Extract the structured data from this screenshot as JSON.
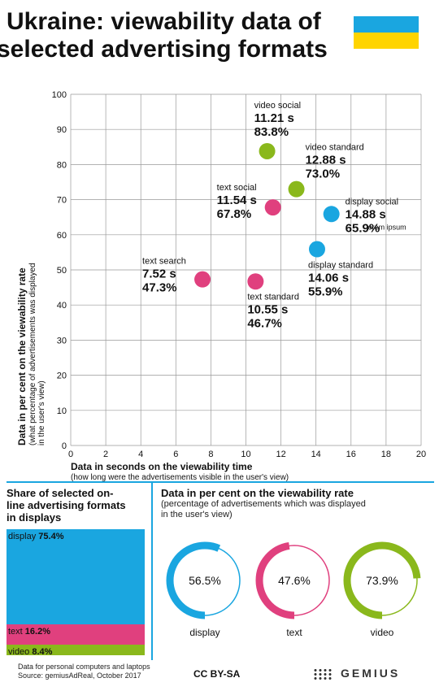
{
  "header": {
    "title_line1": "Ukraine: viewability data of",
    "title_line2": "selected advertising formats",
    "flag_colors": [
      "#1aa6e0",
      "#ffd400"
    ]
  },
  "chart_data": {
    "type": "scatter",
    "xlabel": "Data in seconds on the viewability time",
    "xlabel_sub": "(how long were the advertisements visible in the user's view)",
    "ylabel": "Data in per cent on the viewability rate",
    "ylabel_sub": "(what percentage of advertisements was displayed in the user's view)",
    "xlim": [
      0,
      20
    ],
    "ylim": [
      0,
      100
    ],
    "xticks": [
      2,
      4,
      6,
      8,
      10,
      12,
      14,
      16,
      18,
      20
    ],
    "yticks": [
      0,
      10,
      20,
      30,
      40,
      50,
      60,
      70,
      80,
      90,
      100
    ],
    "grid": true,
    "colors": {
      "display": "#1aa6e0",
      "text": "#e0407e",
      "video": "#8ab81c"
    },
    "points": [
      {
        "name": "video social",
        "x": 11.21,
        "y": 83.8,
        "time_label": "11.21 s",
        "rate_label": "83.8%",
        "group": "video"
      },
      {
        "name": "video standard",
        "x": 12.88,
        "y": 73.0,
        "time_label": "12.88 s",
        "rate_label": "73.0%",
        "group": "video"
      },
      {
        "name": "text social",
        "x": 11.54,
        "y": 67.8,
        "time_label": "11.54 s",
        "rate_label": "67.8%",
        "group": "text"
      },
      {
        "name": "display social",
        "x": 14.88,
        "y": 65.9,
        "time_label": "14.88 s",
        "rate_label": "65.9%",
        "group": "display"
      },
      {
        "name": "display standard",
        "x": 14.06,
        "y": 55.9,
        "time_label": "14.06 s",
        "rate_label": "55.9%",
        "group": "display"
      },
      {
        "name": "text search",
        "x": 7.52,
        "y": 47.3,
        "time_label": "7.52 s",
        "rate_label": "47.3%",
        "group": "text"
      },
      {
        "name": "text standard",
        "x": 10.55,
        "y": 46.7,
        "time_label": "10.55 s",
        "rate_label": "46.7%",
        "group": "text"
      }
    ],
    "stray_label": "lorem ipsum"
  },
  "share": {
    "title": "Share of selected on-line advertising formats in displays",
    "segments": [
      {
        "label": "display",
        "value_label": "75.4%",
        "value": 75.4,
        "color": "#1aa6e0"
      },
      {
        "label": "text",
        "value_label": "16.2%",
        "value": 16.2,
        "color": "#e0407e"
      },
      {
        "label": "video",
        "value_label": "8.4%",
        "value": 8.4,
        "color": "#8ab81c"
      }
    ]
  },
  "rate": {
    "title": "Data in per cent on the viewability rate",
    "subtitle": "(percentage of advertisements which was displayed in the user's view)",
    "rings": [
      {
        "label": "display",
        "value_label": "56.5%",
        "value": 56.5,
        "color": "#1aa6e0"
      },
      {
        "label": "text",
        "value_label": "47.6%",
        "value": 47.6,
        "color": "#e0407e"
      },
      {
        "label": "video",
        "value_label": "73.9%",
        "value": 73.9,
        "color": "#8ab81c"
      }
    ]
  },
  "footer": {
    "note": "Data for personal computers and laptops",
    "source": "Source: gemiusAdReal, October 2017",
    "license": "CC BY-SA",
    "brand": "GEMIUS"
  }
}
